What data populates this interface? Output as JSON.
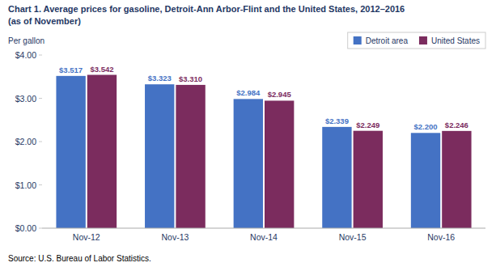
{
  "chart_data": {
    "type": "bar",
    "title": "Chart 1. Average prices for gasoline, Detroit-Ann Arbor-Flint and the United States, 2012–2016",
    "subtitle": "(as of November)",
    "ylabel": "Per gallon",
    "source": "Source: U.S. Bureau of Labor Statistics.",
    "categories": [
      "Nov-12",
      "Nov-13",
      "Nov-14",
      "Nov-15",
      "Nov-16"
    ],
    "series": [
      {
        "name": "Detroit area",
        "color": "#4472C4",
        "values": [
          3.517,
          3.323,
          2.984,
          2.339,
          2.2
        ],
        "value_labels": [
          "$3.517",
          "$3.323",
          "$2.984",
          "$2.339",
          "$2.200"
        ]
      },
      {
        "name": "United States",
        "color": "#7B2C5E",
        "values": [
          3.542,
          3.31,
          2.945,
          2.249,
          2.246
        ],
        "value_labels": [
          "$3.542",
          "$3.310",
          "$2.945",
          "$2.249",
          "$2.246"
        ]
      }
    ],
    "ylim": [
      0,
      4.0
    ],
    "yticks": [
      {
        "value": 0.0,
        "label": "$0.00"
      },
      {
        "value": 1.0,
        "label": "$1.00"
      },
      {
        "value": 2.0,
        "label": "$2.00"
      },
      {
        "value": 3.0,
        "label": "$3.00"
      },
      {
        "value": 4.0,
        "label": "$4.00"
      }
    ],
    "grid": false,
    "legend": "upper right",
    "data_labels": true
  }
}
